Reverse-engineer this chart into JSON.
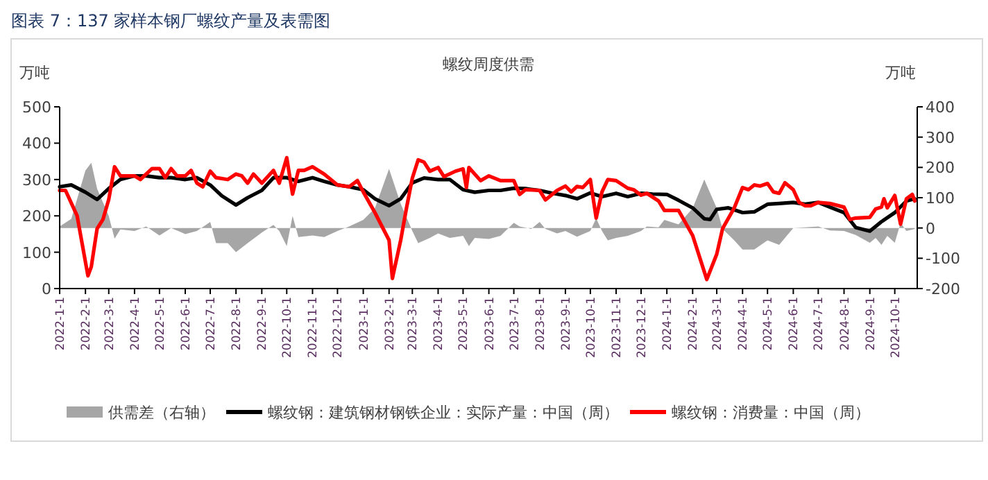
{
  "chart_data": {
    "type": "line",
    "title": "图表 7：137 家样本钢厂螺纹产量及表需图",
    "subtitle": "螺纹周度供需",
    "ylabel": "万吨",
    "y2label": "万吨",
    "xlim": [
      "2022-01-01",
      "2024-10-28"
    ],
    "xticks": [
      {
        "value": "2022-01-01",
        "label": "2022-1-1"
      },
      {
        "value": "2022-02-01",
        "label": "2022-2-1"
      },
      {
        "value": "2022-03-01",
        "label": "2022-3-1"
      },
      {
        "value": "2022-04-01",
        "label": "2022-4-1"
      },
      {
        "value": "2022-05-01",
        "label": "2022-5-1"
      },
      {
        "value": "2022-06-01",
        "label": "2022-6-1"
      },
      {
        "value": "2022-07-01",
        "label": "2022-7-1"
      },
      {
        "value": "2022-08-01",
        "label": "2022-8-1"
      },
      {
        "value": "2022-09-01",
        "label": "2022-9-1"
      },
      {
        "value": "2022-10-01",
        "label": "2022-10-1"
      },
      {
        "value": "2022-11-01",
        "label": "2022-11-1"
      },
      {
        "value": "2022-12-01",
        "label": "2022-12-1"
      },
      {
        "value": "2023-01-01",
        "label": "2023-1-1"
      },
      {
        "value": "2023-02-01",
        "label": "2023-2-1"
      },
      {
        "value": "2023-03-01",
        "label": "2023-3-1"
      },
      {
        "value": "2023-04-01",
        "label": "2023-4-1"
      },
      {
        "value": "2023-05-01",
        "label": "2023-5-1"
      },
      {
        "value": "2023-06-01",
        "label": "2023-6-1"
      },
      {
        "value": "2023-07-01",
        "label": "2023-7-1"
      },
      {
        "value": "2023-08-01",
        "label": "2023-8-1"
      },
      {
        "value": "2023-09-01",
        "label": "2023-9-1"
      },
      {
        "value": "2023-10-01",
        "label": "2023-10-1"
      },
      {
        "value": "2023-11-01",
        "label": "2023-11-1"
      },
      {
        "value": "2023-12-01",
        "label": "2023-12-1"
      },
      {
        "value": "2024-01-01",
        "label": "2024-1-1"
      },
      {
        "value": "2024-02-01",
        "label": "2024-2-1"
      },
      {
        "value": "2024-03-01",
        "label": "2024-3-1"
      },
      {
        "value": "2024-04-01",
        "label": "2024-4-1"
      },
      {
        "value": "2024-05-01",
        "label": "2024-5-1"
      },
      {
        "value": "2024-06-01",
        "label": "2024-6-1"
      },
      {
        "value": "2024-07-01",
        "label": "2024-7-1"
      },
      {
        "value": "2024-08-01",
        "label": "2024-8-1"
      },
      {
        "value": "2024-09-01",
        "label": "2024-9-1"
      },
      {
        "value": "2024-10-01",
        "label": "2024-10-1"
      }
    ],
    "ylim": [
      0,
      500
    ],
    "yticks": [
      0,
      100,
      200,
      300,
      400,
      500
    ],
    "y2lim": [
      -200,
      400
    ],
    "y2ticks": [
      -200,
      -100,
      0,
      100,
      200,
      300,
      400
    ],
    "grid": false,
    "legend": "bottom",
    "line_style": "solid",
    "marker": "none",
    "series": [
      {
        "name": "供需差（右轴）",
        "type": "area",
        "axis": "y2",
        "color": "#a6a6a6",
        "x": [
          "2022-01-01",
          "2022-01-15",
          "2022-02-01",
          "2022-02-08",
          "2022-02-15",
          "2022-03-01",
          "2022-03-08",
          "2022-03-15",
          "2022-04-01",
          "2022-04-15",
          "2022-05-01",
          "2022-05-15",
          "2022-06-01",
          "2022-06-15",
          "2022-07-01",
          "2022-07-08",
          "2022-07-22",
          "2022-08-01",
          "2022-08-15",
          "2022-09-01",
          "2022-09-15",
          "2022-09-22",
          "2022-10-01",
          "2022-10-08",
          "2022-10-15",
          "2022-11-01",
          "2022-11-15",
          "2022-12-01",
          "2022-12-15",
          "2023-01-01",
          "2023-01-15",
          "2023-02-01",
          "2023-02-15",
          "2023-03-01",
          "2023-03-08",
          "2023-03-22",
          "2023-04-01",
          "2023-04-15",
          "2023-05-01",
          "2023-05-08",
          "2023-05-15",
          "2023-06-01",
          "2023-06-15",
          "2023-07-01",
          "2023-07-08",
          "2023-07-22",
          "2023-08-01",
          "2023-08-08",
          "2023-08-22",
          "2023-09-01",
          "2023-09-15",
          "2023-10-01",
          "2023-10-08",
          "2023-10-15",
          "2023-10-22",
          "2023-11-01",
          "2023-11-15",
          "2023-12-01",
          "2023-12-08",
          "2023-12-22",
          "2023-12-29",
          "2024-01-15",
          "2024-02-01",
          "2024-02-15",
          "2024-03-01",
          "2024-03-08",
          "2024-03-22",
          "2024-04-01",
          "2024-04-15",
          "2024-05-01",
          "2024-05-15",
          "2024-05-22",
          "2024-06-01",
          "2024-06-15",
          "2024-07-01",
          "2024-07-15",
          "2024-08-01",
          "2024-08-15",
          "2024-09-01",
          "2024-09-08",
          "2024-09-15",
          "2024-09-22",
          "2024-10-01",
          "2024-10-08",
          "2024-10-15",
          "2024-10-25"
        ],
        "values": [
          5,
          30,
          190,
          215,
          130,
          40,
          -35,
          -5,
          -10,
          5,
          -25,
          0,
          -20,
          -10,
          20,
          -50,
          -50,
          -80,
          -50,
          -15,
          10,
          -10,
          -60,
          40,
          -30,
          -25,
          -30,
          -10,
          5,
          27,
          65,
          195,
          80,
          -10,
          -50,
          -33,
          -18,
          -33,
          -26,
          -60,
          -33,
          -36,
          -26,
          17,
          5,
          -3,
          20,
          -3,
          -18,
          -10,
          -29,
          -10,
          32,
          -10,
          -41,
          -33,
          -26,
          -10,
          5,
          2,
          27,
          12,
          65,
          160,
          65,
          -3,
          -41,
          -71,
          -71,
          -41,
          -56,
          -33,
          0,
          2,
          5,
          -8,
          -10,
          -23,
          -49,
          -33,
          -56,
          -26,
          -49,
          17,
          -10,
          -3
        ]
      },
      {
        "name": "螺纹钢：建筑钢材钢铁企业：实际产量：中国（周）",
        "type": "line",
        "color": "#000000",
        "x": [
          "2022-01-01",
          "2022-01-15",
          "2022-02-01",
          "2022-02-15",
          "2022-03-01",
          "2022-03-15",
          "2022-04-01",
          "2022-04-15",
          "2022-05-01",
          "2022-05-15",
          "2022-06-01",
          "2022-06-15",
          "2022-07-01",
          "2022-07-15",
          "2022-08-01",
          "2022-08-15",
          "2022-09-01",
          "2022-09-15",
          "2022-10-01",
          "2022-10-15",
          "2022-11-01",
          "2022-11-15",
          "2022-12-01",
          "2022-12-15",
          "2023-01-01",
          "2023-01-15",
          "2023-02-01",
          "2023-02-15",
          "2023-03-01",
          "2023-03-15",
          "2023-04-01",
          "2023-04-15",
          "2023-05-01",
          "2023-05-15",
          "2023-06-01",
          "2023-06-15",
          "2023-07-01",
          "2023-07-15",
          "2023-08-01",
          "2023-08-15",
          "2023-09-01",
          "2023-09-15",
          "2023-10-01",
          "2023-10-15",
          "2023-11-01",
          "2023-11-15",
          "2023-12-01",
          "2023-12-15",
          "2024-01-01",
          "2024-01-15",
          "2024-02-01",
          "2024-02-15",
          "2024-02-22",
          "2024-03-01",
          "2024-03-15",
          "2024-04-01",
          "2024-04-15",
          "2024-05-01",
          "2024-05-15",
          "2024-06-01",
          "2024-06-15",
          "2024-07-01",
          "2024-07-15",
          "2024-08-01",
          "2024-08-15",
          "2024-09-01",
          "2024-09-15",
          "2024-10-01",
          "2024-10-15",
          "2024-10-25"
        ],
        "values": [
          280,
          285,
          265,
          245,
          275,
          300,
          310,
          310,
          305,
          305,
          300,
          305,
          285,
          255,
          230,
          250,
          270,
          305,
          305,
          295,
          305,
          295,
          285,
          280,
          272,
          247,
          228,
          247,
          291,
          304,
          300,
          300,
          272,
          265,
          270,
          270,
          276,
          275,
          270,
          263,
          256,
          247,
          263,
          253,
          262,
          253,
          262,
          260,
          259,
          243,
          222,
          192,
          190,
          218,
          222,
          209,
          211,
          232,
          234,
          237,
          232,
          237,
          224,
          209,
          168,
          158,
          184,
          209,
          241,
          247
        ]
      },
      {
        "name": "螺纹钢：消费量：中国（周）",
        "type": "line",
        "color": "#ff0000",
        "x": [
          "2022-01-01",
          "2022-01-08",
          "2022-01-22",
          "2022-02-04",
          "2022-02-08",
          "2022-02-15",
          "2022-02-22",
          "2022-03-01",
          "2022-03-08",
          "2022-03-15",
          "2022-04-01",
          "2022-04-08",
          "2022-04-22",
          "2022-05-01",
          "2022-05-08",
          "2022-05-15",
          "2022-05-22",
          "2022-06-01",
          "2022-06-08",
          "2022-06-15",
          "2022-06-22",
          "2022-07-01",
          "2022-07-08",
          "2022-07-22",
          "2022-08-01",
          "2022-08-08",
          "2022-08-15",
          "2022-08-22",
          "2022-09-01",
          "2022-09-15",
          "2022-09-22",
          "2022-10-01",
          "2022-10-08",
          "2022-10-15",
          "2022-10-22",
          "2022-11-01",
          "2022-11-15",
          "2022-12-01",
          "2022-12-15",
          "2022-12-25",
          "2023-01-01",
          "2023-01-15",
          "2023-02-01",
          "2023-02-05",
          "2023-02-15",
          "2023-02-22",
          "2023-03-01",
          "2023-03-08",
          "2023-03-15",
          "2023-03-22",
          "2023-04-01",
          "2023-04-08",
          "2023-04-22",
          "2023-05-01",
          "2023-05-05",
          "2023-05-08",
          "2023-05-22",
          "2023-06-01",
          "2023-06-15",
          "2023-07-01",
          "2023-07-08",
          "2023-07-15",
          "2023-08-01",
          "2023-08-08",
          "2023-08-22",
          "2023-09-01",
          "2023-09-08",
          "2023-09-15",
          "2023-09-22",
          "2023-10-01",
          "2023-10-08",
          "2023-10-15",
          "2023-10-22",
          "2023-11-01",
          "2023-11-15",
          "2023-11-22",
          "2023-12-01",
          "2023-12-08",
          "2023-12-22",
          "2023-12-29",
          "2024-01-15",
          "2024-02-01",
          "2024-02-18",
          "2024-03-01",
          "2024-03-08",
          "2024-03-22",
          "2024-04-01",
          "2024-04-08",
          "2024-04-15",
          "2024-04-22",
          "2024-05-01",
          "2024-05-08",
          "2024-05-15",
          "2024-05-22",
          "2024-06-01",
          "2024-06-08",
          "2024-06-15",
          "2024-06-22",
          "2024-07-01",
          "2024-07-15",
          "2024-08-01",
          "2024-08-08",
          "2024-08-15",
          "2024-09-01",
          "2024-09-08",
          "2024-09-15",
          "2024-09-18",
          "2024-09-22",
          "2024-10-01",
          "2024-10-08",
          "2024-10-15",
          "2024-10-22",
          "2024-10-25"
        ],
        "values": [
          270,
          270,
          200,
          35,
          60,
          165,
          190,
          245,
          335,
          310,
          310,
          300,
          330,
          330,
          305,
          330,
          310,
          310,
          325,
          290,
          280,
          323,
          305,
          300,
          315,
          310,
          290,
          315,
          290,
          325,
          290,
          360,
          260,
          325,
          325,
          335,
          315,
          285,
          280,
          297,
          266,
          209,
          133,
          28,
          133,
          222,
          304,
          354,
          348,
          323,
          333,
          308,
          323,
          329,
          278,
          333,
          297,
          310,
          297,
          297,
          259,
          272,
          270,
          244,
          270,
          282,
          266,
          281,
          278,
          300,
          194,
          266,
          300,
          297,
          276,
          272,
          257,
          262,
          241,
          215,
          215,
          146,
          25,
          95,
          165,
          222,
          278,
          272,
          285,
          282,
          289,
          266,
          262,
          291,
          272,
          237,
          228,
          228,
          237,
          234,
          224,
          190,
          194,
          196,
          219,
          224,
          247,
          222,
          256,
          177,
          247,
          259,
          241
        ]
      }
    ]
  }
}
